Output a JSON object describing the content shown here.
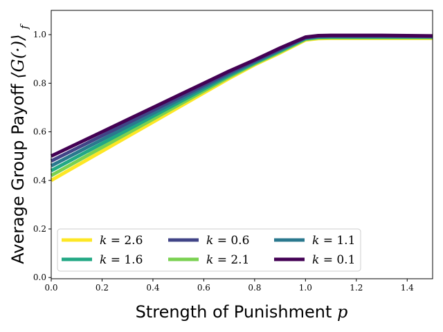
{
  "chart_data": {
    "type": "line",
    "xlabel_text": "Strength of Punishment",
    "xlabel_symbol": "p",
    "ylabel_text": "Average Group Payoff",
    "ylabel_symbol": "⟨G(·)⟩",
    "ylabel_subscript": "f",
    "xlim": [
      0,
      1.5
    ],
    "ylim": [
      -0.005,
      1.1
    ],
    "xticks": [
      0.0,
      0.2,
      0.4,
      0.6,
      0.8,
      1.0,
      1.2,
      1.4
    ],
    "xtick_labels": [
      "0.0",
      "0.2",
      "0.4",
      "0.6",
      "0.8",
      "1.0",
      "1.2",
      "1.4"
    ],
    "yticks": [
      0.0,
      0.2,
      0.4,
      0.6,
      0.8,
      1.0
    ],
    "ytick_labels": [
      "0.0",
      "0.2",
      "0.4",
      "0.6",
      "0.8",
      "1.0"
    ],
    "grid": false,
    "legend_placement": "lower-center",
    "x": [
      0.0,
      0.1,
      0.2,
      0.3,
      0.4,
      0.5,
      0.6,
      0.7,
      0.8,
      0.9,
      1.0,
      1.05,
      1.1,
      1.2,
      1.3,
      1.4,
      1.5
    ],
    "series": [
      {
        "name": "k = 2.6",
        "color": "#fde725",
        "values": [
          0.4,
          0.46,
          0.52,
          0.58,
          0.64,
          0.7,
          0.76,
          0.82,
          0.876,
          0.925,
          0.978,
          0.984,
          0.985,
          0.985,
          0.985,
          0.985,
          0.985
        ]
      },
      {
        "name": "k = 2.1",
        "color": "#7ad151",
        "values": [
          0.42,
          0.478,
          0.536,
          0.594,
          0.652,
          0.71,
          0.768,
          0.826,
          0.88,
          0.929,
          0.981,
          0.987,
          0.988,
          0.988,
          0.988,
          0.988,
          0.988
        ]
      },
      {
        "name": "k = 1.6",
        "color": "#22a884",
        "values": [
          0.44,
          0.496,
          0.552,
          0.608,
          0.664,
          0.72,
          0.776,
          0.832,
          0.884,
          0.933,
          0.984,
          0.99,
          0.991,
          0.991,
          0.991,
          0.991,
          0.991
        ]
      },
      {
        "name": "k = 1.1",
        "color": "#2a788e",
        "values": [
          0.46,
          0.514,
          0.568,
          0.622,
          0.676,
          0.73,
          0.784,
          0.838,
          0.888,
          0.937,
          0.986,
          0.992,
          0.993,
          0.993,
          0.993,
          0.993,
          0.992
        ]
      },
      {
        "name": "k = 0.6",
        "color": "#414487",
        "values": [
          0.48,
          0.532,
          0.584,
          0.636,
          0.688,
          0.74,
          0.792,
          0.844,
          0.892,
          0.941,
          0.988,
          0.994,
          0.995,
          0.995,
          0.995,
          0.994,
          0.993
        ]
      },
      {
        "name": "k = 0.1",
        "color": "#440154",
        "values": [
          0.5,
          0.55,
          0.6,
          0.65,
          0.7,
          0.75,
          0.8,
          0.85,
          0.896,
          0.945,
          0.99,
          0.996,
          0.997,
          0.997,
          0.997,
          0.996,
          0.995
        ]
      }
    ],
    "legend_order": [
      0,
      2,
      4,
      1,
      3,
      5
    ]
  }
}
